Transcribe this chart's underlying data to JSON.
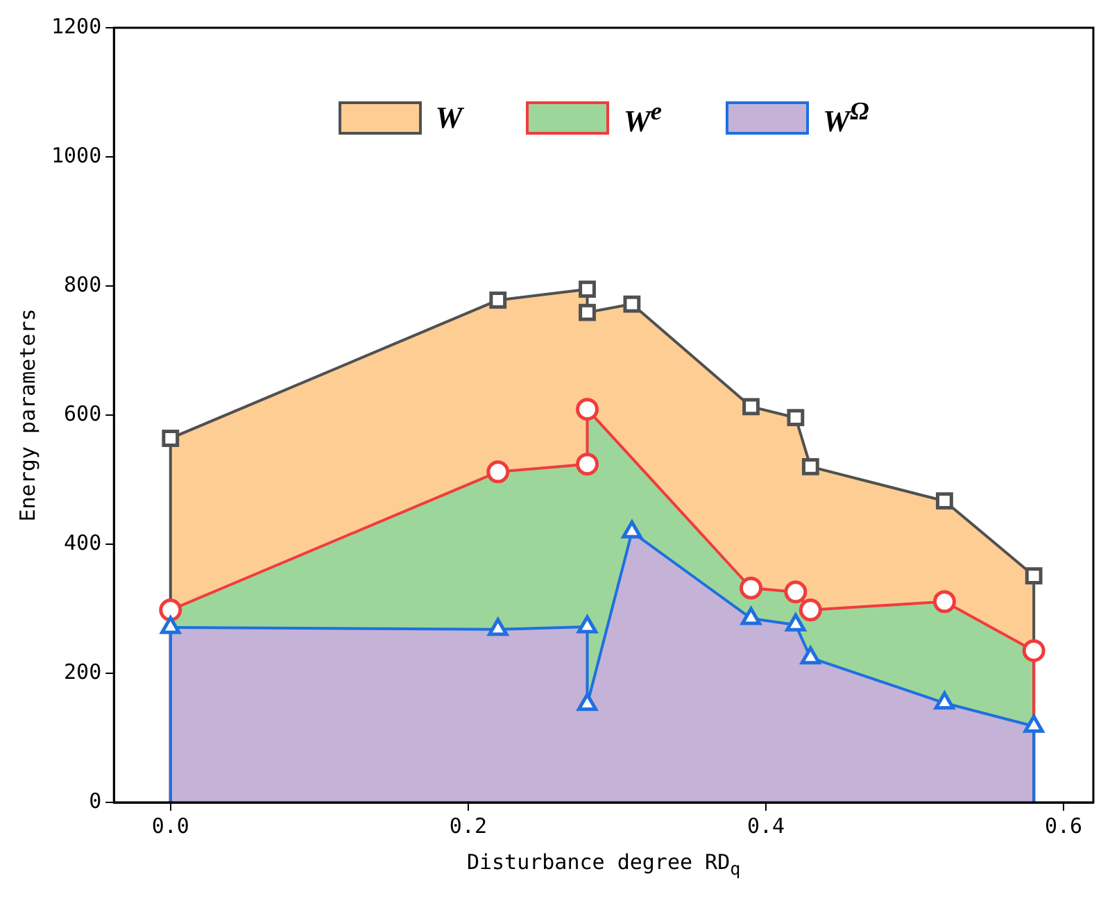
{
  "chart_data": {
    "type": "area",
    "xlabel": "Disturbance degree RD$_{q}$",
    "ylabel": "Energy parameters",
    "xlim": [
      -0.038,
      0.62
    ],
    "ylim": [
      0,
      1200
    ],
    "xticks": [
      {
        "value": 0,
        "label": "0.0"
      },
      {
        "value": 0.2,
        "label": "0.2"
      },
      {
        "value": 0.4,
        "label": "0.4"
      },
      {
        "value": 0.6,
        "label": "0.6"
      }
    ],
    "yticks": [
      0,
      200,
      400,
      600,
      800,
      1000,
      1200
    ],
    "grid": false,
    "legend": "top",
    "series": [
      {
        "name": "W",
        "color": "#505050",
        "marker": "square",
        "x": [
          0,
          0,
          0.22,
          0.28,
          0.28,
          0.31,
          0.39,
          0.42,
          0.43,
          0.52,
          0.58,
          0.58
        ],
        "values": [
          0,
          564,
          778,
          795,
          759,
          772,
          613,
          596,
          520,
          467,
          351,
          0
        ]
      },
      {
        "name": "W$^{e}$",
        "color": "#f03c3c",
        "marker": "circle",
        "x": [
          0,
          0,
          0.22,
          0.28,
          0.28,
          0.31,
          0.39,
          0.42,
          0.43,
          0.52,
          0.58,
          0.58
        ],
        "values": [
          0,
          298,
          512,
          524,
          609,
          null,
          332,
          326,
          298,
          311,
          235,
          0
        ]
      },
      {
        "name": "W$^{Ω}$",
        "color": "#1f6fe0",
        "marker": "triangle",
        "x": [
          0,
          0,
          0.22,
          0.28,
          0.28,
          0.31,
          0.39,
          0.42,
          0.43,
          0.52,
          0.58,
          0.58
        ],
        "values": [
          0,
          271,
          268,
          272,
          152,
          419,
          285,
          275,
          224,
          154,
          118,
          0
        ]
      }
    ]
  }
}
